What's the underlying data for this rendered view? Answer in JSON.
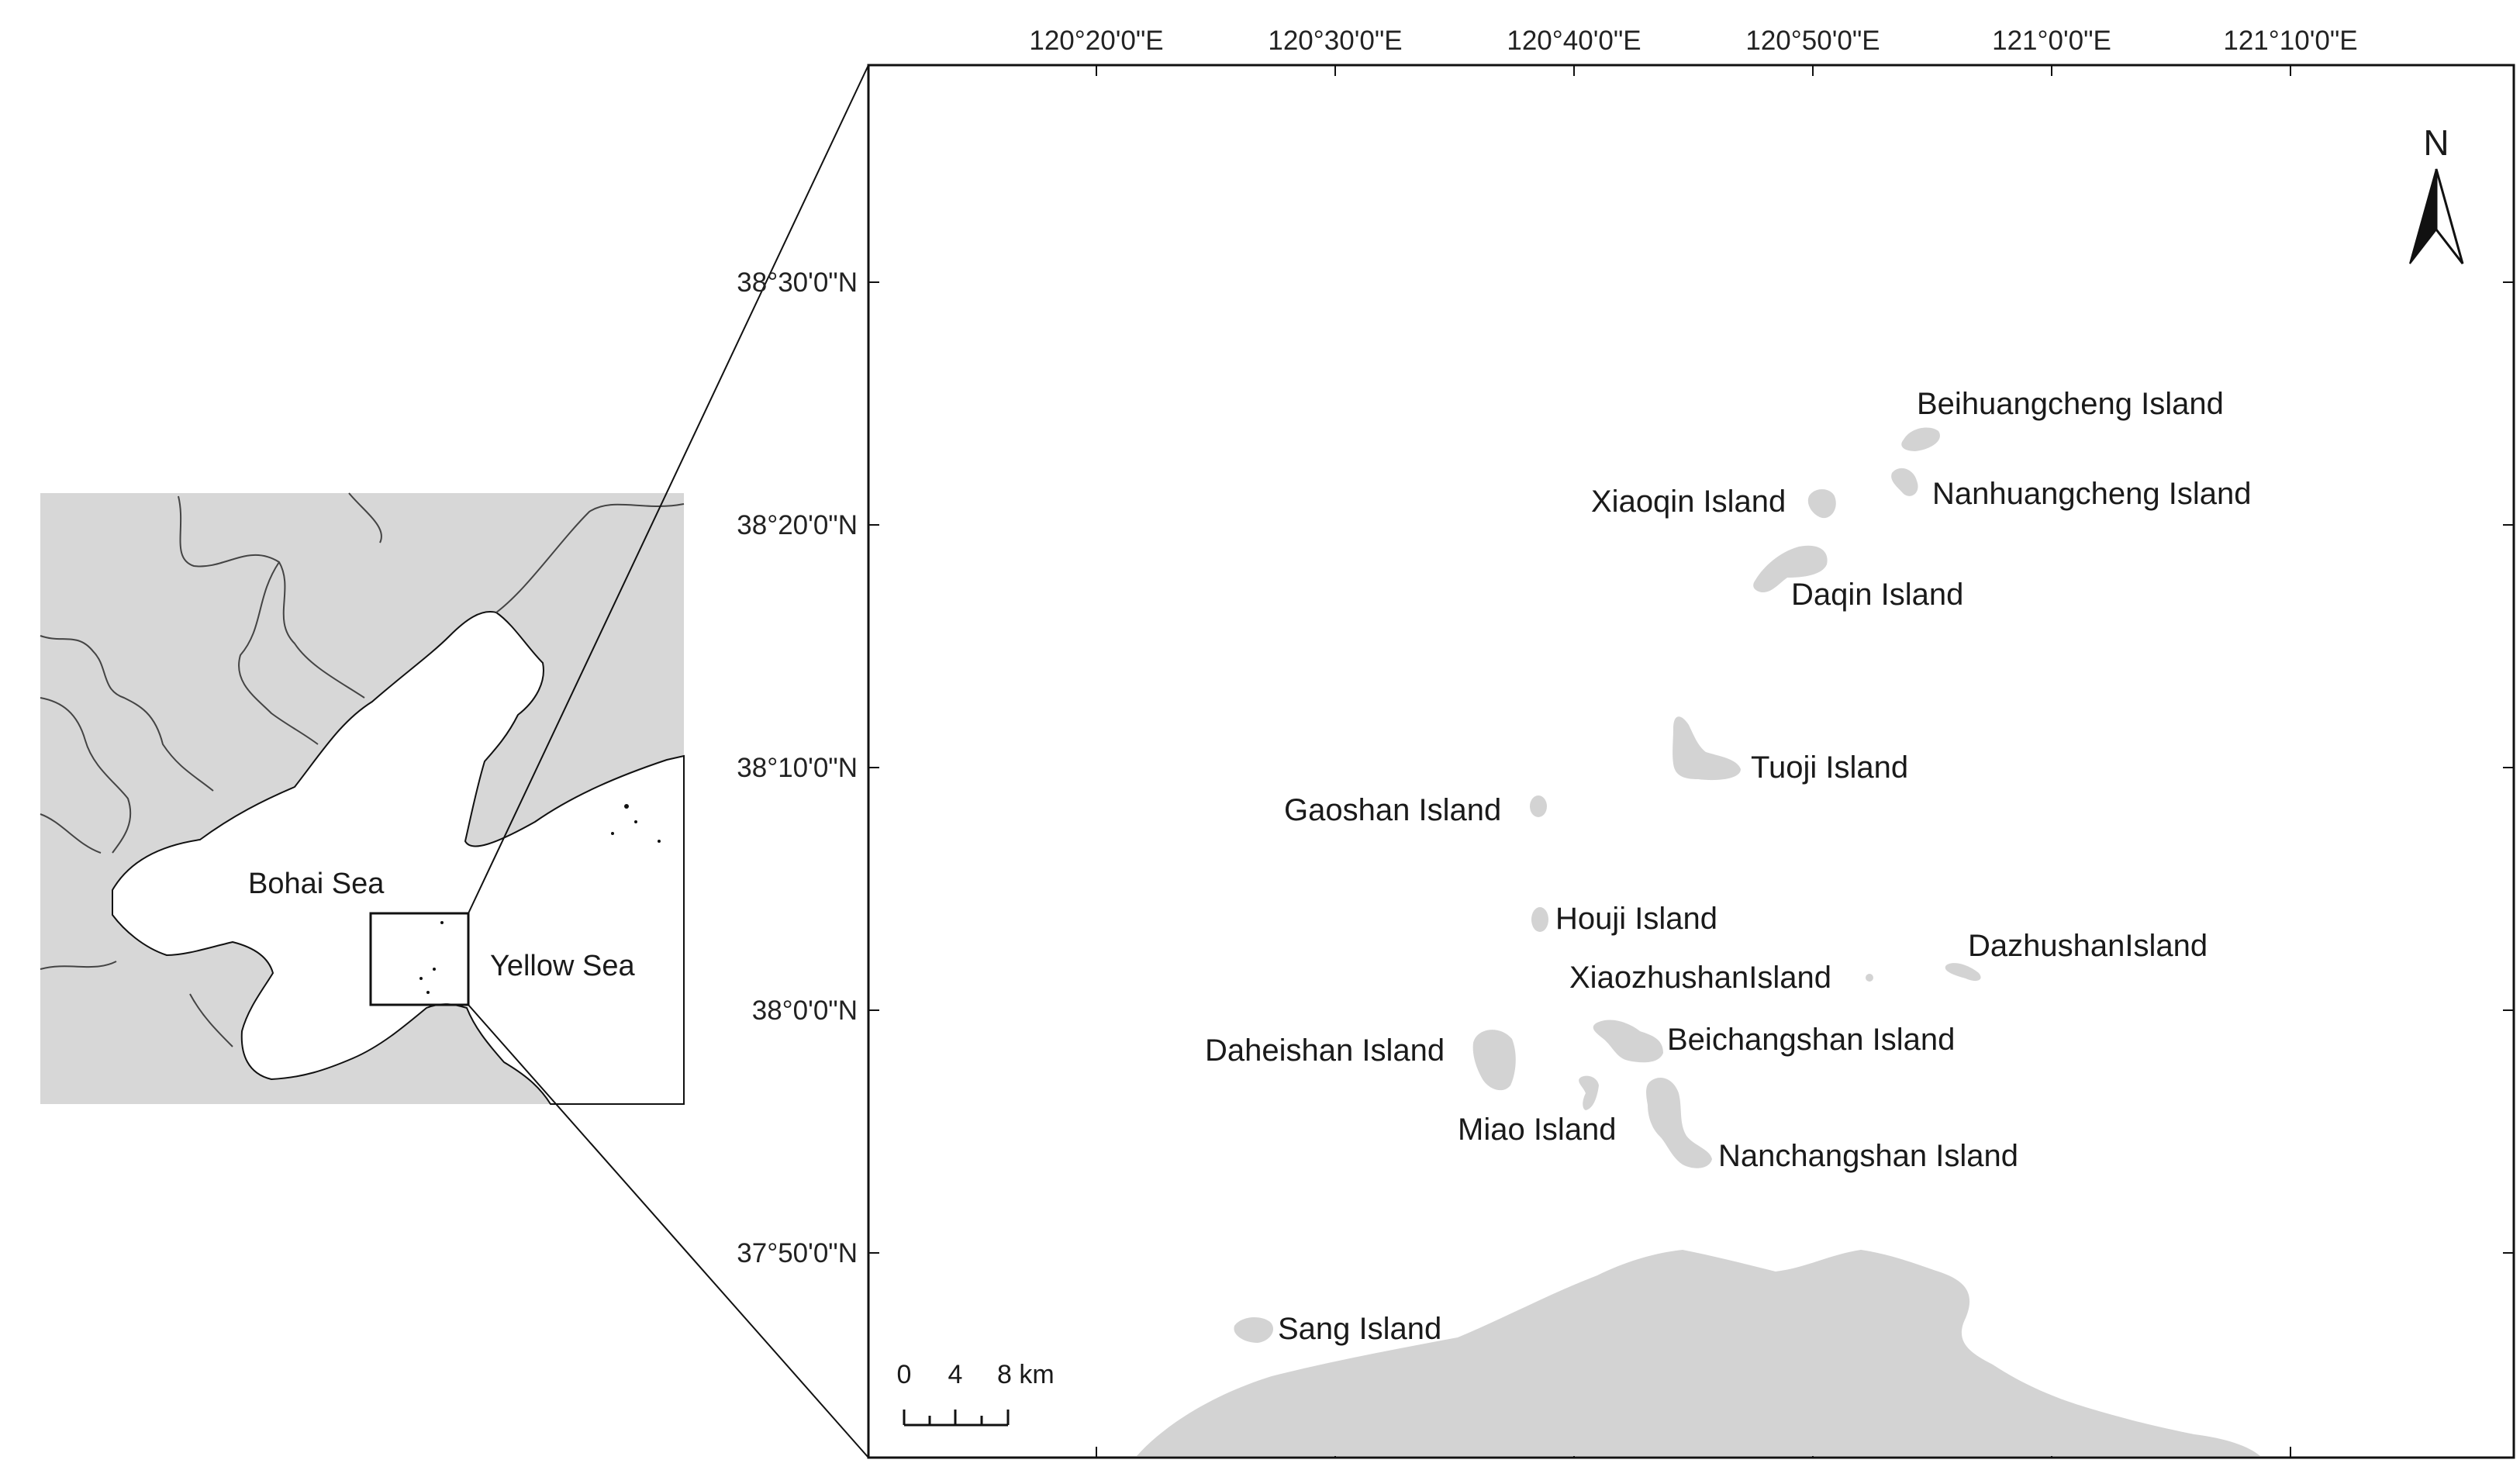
{
  "colors": {
    "land": "#d3d3d3",
    "sea": "#ffffff",
    "lines": "#111111"
  },
  "overview": {
    "labels": {
      "bohai": "Bohai Sea",
      "yellow": "Yellow Sea"
    }
  },
  "main_map": {
    "lon_ticks": [
      "120°20'0\"E",
      "120°30'0\"E",
      "120°40'0\"E",
      "120°50'0\"E",
      "121°0'0\"E",
      "121°10'0\"E"
    ],
    "lat_ticks": [
      "38°30'0\"N",
      "38°20'0\"N",
      "38°10'0\"N",
      "38°0'0\"N",
      "37°50'0\"N"
    ],
    "islands": {
      "beihuangcheng": "Beihuangcheng Island",
      "nanhuangcheng": "Nanhuangcheng Island",
      "xiaoqin": "Xiaoqin Island",
      "daqin": "Daqin Island",
      "tuoji": "Tuoji Island",
      "gaoshan": "Gaoshan Island",
      "houji": "Houji Island",
      "dazhushan": "DazhushanIsland",
      "xiaozhushan": "XiaozhushanIsland",
      "beichangshan": "Beichangshan Island",
      "daheishan": "Daheishan Island",
      "miao": "Miao Island",
      "nanchangshan": "Nanchangshan Island",
      "sang": "Sang Island"
    },
    "north_arrow": {
      "label": "N",
      "icon": "north-arrow-icon"
    },
    "scale_bar": {
      "labels": [
        "0",
        "4",
        "8 km"
      ]
    }
  }
}
